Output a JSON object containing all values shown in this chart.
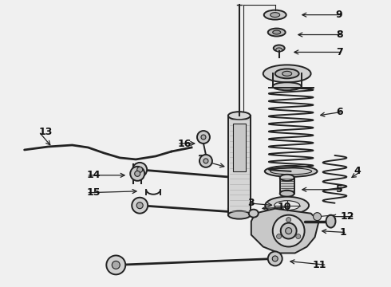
{
  "bg_color": "#f0f0f0",
  "line_color": "#222222",
  "label_color": "#111111",
  "figsize": [
    4.9,
    3.6
  ],
  "dpi": 100,
  "lw_main": 1.4,
  "lw_thin": 0.8,
  "lw_thick": 2.0,
  "font_size": 8.5,
  "font_size_bold": 9.0
}
